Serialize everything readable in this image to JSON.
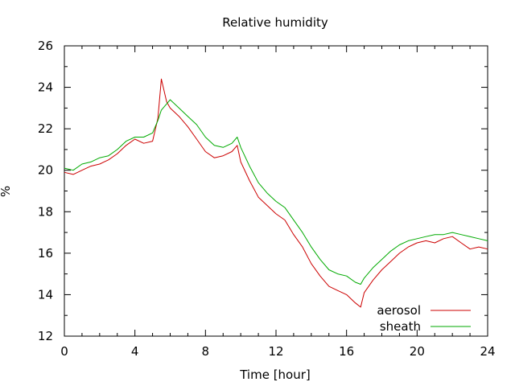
{
  "chart_data": {
    "type": "line",
    "title": "Relative humidity",
    "xlabel": "Time [hour]",
    "ylabel": "%",
    "xlim": [
      0,
      24
    ],
    "ylim": [
      12,
      26
    ],
    "xticks": [
      0,
      4,
      8,
      12,
      16,
      20,
      24
    ],
    "yticks": [
      12,
      14,
      16,
      18,
      20,
      22,
      24,
      26
    ],
    "grid": false,
    "legend_position": "bottom-right",
    "series": [
      {
        "name": "aerosol",
        "color": "#cc0000",
        "x": [
          0,
          0.5,
          1,
          1.5,
          2,
          2.5,
          3,
          3.5,
          4,
          4.5,
          5,
          5.3,
          5.5,
          5.8,
          6,
          6.5,
          7,
          7.5,
          8,
          8.5,
          9,
          9.5,
          9.8,
          10,
          10.5,
          11,
          11.5,
          12,
          12.5,
          13,
          13.5,
          14,
          14.5,
          15,
          15.5,
          16,
          16.5,
          16.8,
          17,
          17.5,
          18,
          18.5,
          19,
          19.5,
          20,
          20.5,
          21,
          21.5,
          22,
          22.5,
          23,
          23.5,
          24
        ],
        "y": [
          19.9,
          19.8,
          20.0,
          20.2,
          20.3,
          20.5,
          20.8,
          21.2,
          21.5,
          21.3,
          21.4,
          22.5,
          24.4,
          23.3,
          23.0,
          22.6,
          22.1,
          21.5,
          20.9,
          20.6,
          20.7,
          20.9,
          21.2,
          20.4,
          19.5,
          18.7,
          18.3,
          17.9,
          17.6,
          16.9,
          16.3,
          15.5,
          14.9,
          14.4,
          14.2,
          14.0,
          13.6,
          13.4,
          14.1,
          14.7,
          15.2,
          15.6,
          16.0,
          16.3,
          16.5,
          16.6,
          16.5,
          16.7,
          16.8,
          16.5,
          16.2,
          16.3,
          16.2
        ]
      },
      {
        "name": "sheath",
        "color": "#00aa00",
        "x": [
          0,
          0.5,
          1,
          1.5,
          2,
          2.5,
          3,
          3.5,
          4,
          4.5,
          5,
          5.3,
          5.5,
          5.8,
          6,
          6.5,
          7,
          7.5,
          8,
          8.5,
          9,
          9.5,
          9.8,
          10,
          10.5,
          11,
          11.5,
          12,
          12.5,
          13,
          13.5,
          14,
          14.5,
          15,
          15.5,
          16,
          16.5,
          16.8,
          17,
          17.5,
          18,
          18.5,
          19,
          19.5,
          20,
          20.5,
          21,
          21.5,
          22,
          22.5,
          23,
          23.5,
          24
        ],
        "y": [
          20.1,
          20.0,
          20.3,
          20.4,
          20.6,
          20.7,
          21.0,
          21.4,
          21.6,
          21.6,
          21.8,
          22.4,
          22.9,
          23.2,
          23.4,
          23.0,
          22.6,
          22.2,
          21.6,
          21.2,
          21.1,
          21.3,
          21.6,
          21.1,
          20.2,
          19.4,
          18.9,
          18.5,
          18.2,
          17.6,
          17.0,
          16.3,
          15.7,
          15.2,
          15.0,
          14.9,
          14.6,
          14.5,
          14.8,
          15.3,
          15.7,
          16.1,
          16.4,
          16.6,
          16.7,
          16.8,
          16.9,
          16.9,
          17.0,
          16.9,
          16.8,
          16.7,
          16.6
        ]
      }
    ]
  }
}
